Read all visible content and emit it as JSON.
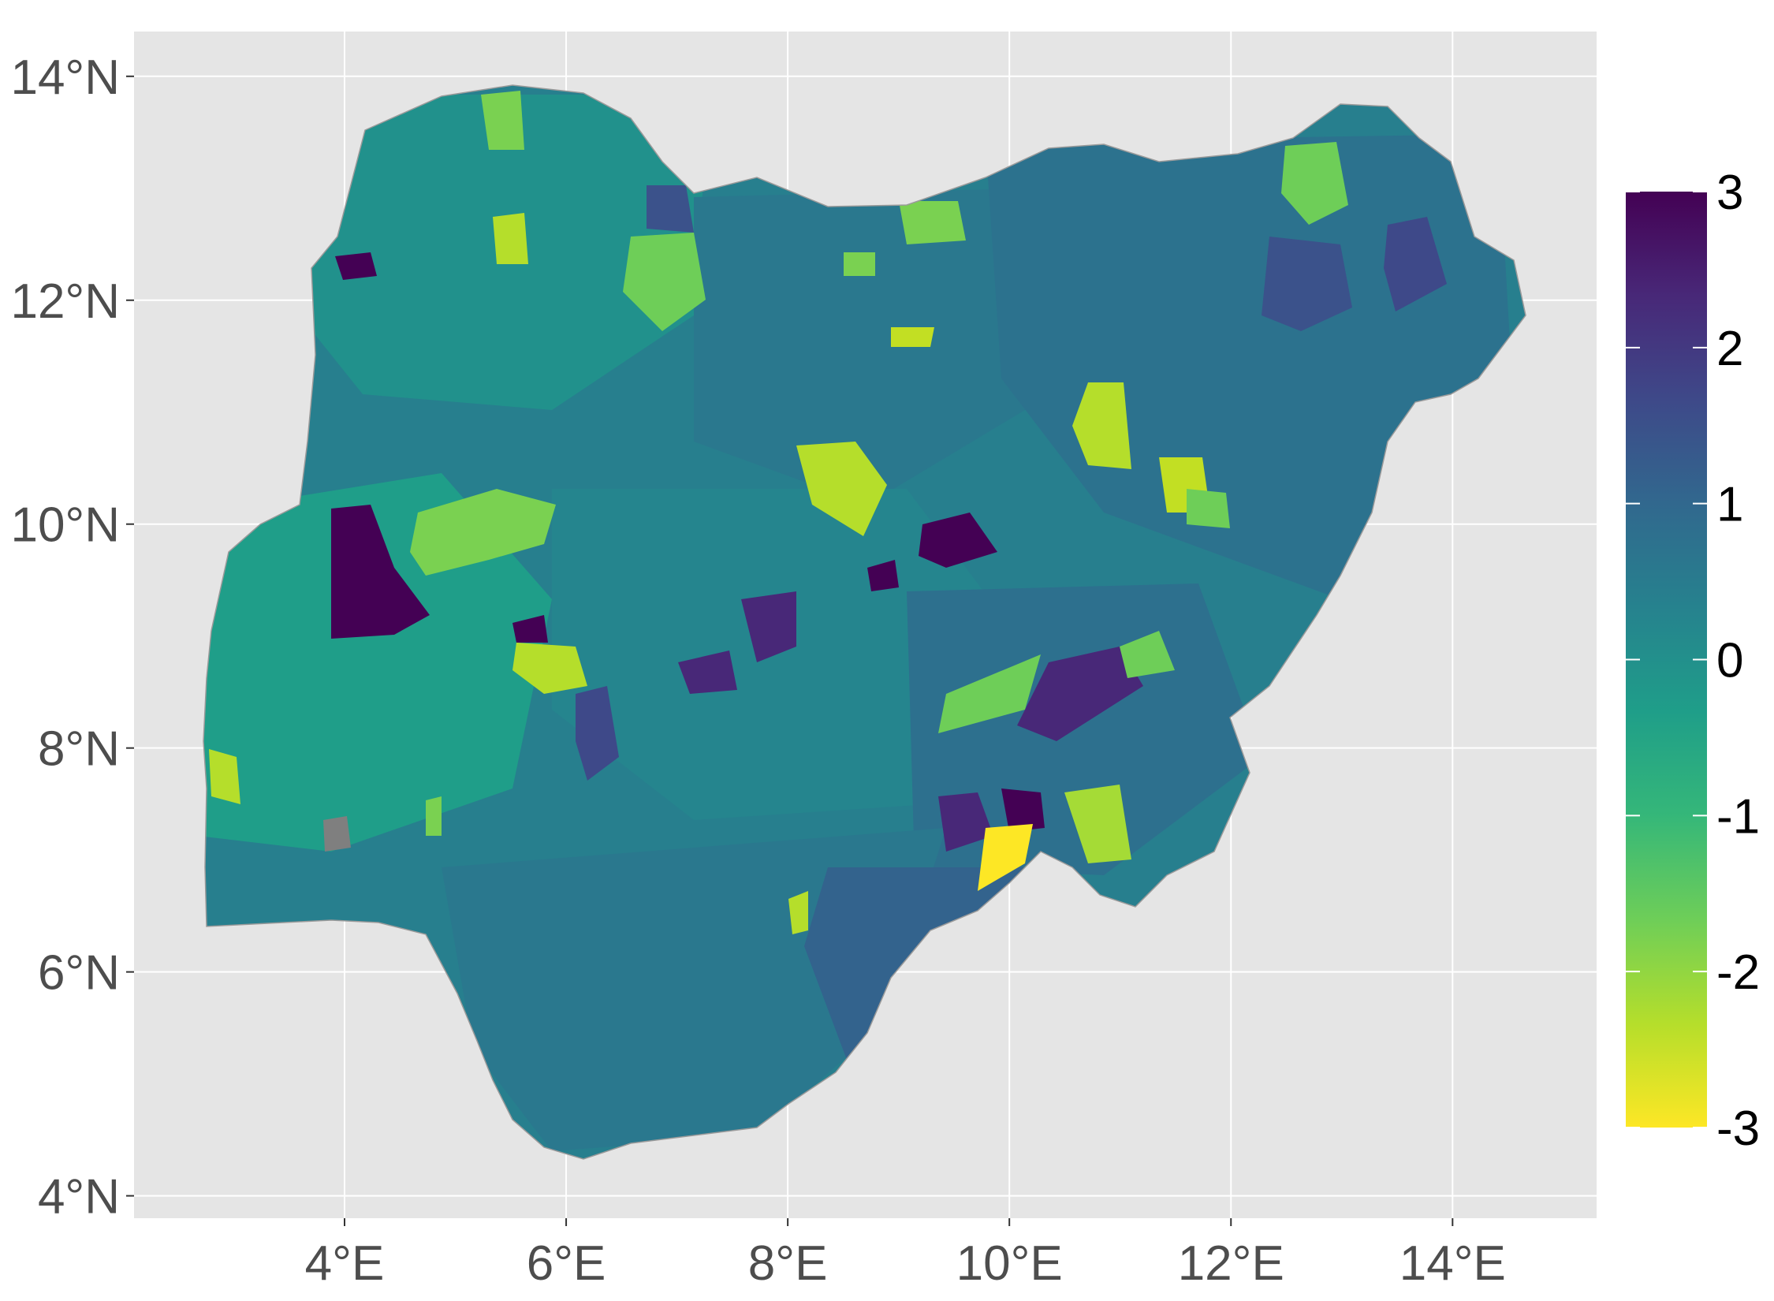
{
  "map": {
    "type": "choropleth",
    "region": "Nigeria",
    "panel_background": "#e5e5e5",
    "grid_color": "#ffffff",
    "grid": true,
    "x_axis": {
      "ticks": [
        4,
        6,
        8,
        10,
        12,
        14
      ],
      "tick_labels": [
        "4°E",
        "6°E",
        "8°E",
        "10°E",
        "12°E",
        "14°E"
      ],
      "range": [
        2.1,
        15.3
      ]
    },
    "y_axis": {
      "ticks": [
        4,
        6,
        8,
        10,
        12,
        14
      ],
      "tick_labels": [
        "4°N",
        "6°N",
        "8°N",
        "10°N",
        "12°N",
        "14°N"
      ],
      "range": [
        3.8,
        14.4
      ]
    },
    "missing_color": "#7f7f7f"
  },
  "legend": {
    "placement": "right",
    "palette": "viridis (reversed)",
    "range": [
      -3,
      3
    ],
    "breaks": [
      3,
      2,
      1,
      0,
      -1,
      -2,
      -3
    ],
    "break_labels": [
      "3",
      "2",
      "1",
      "0",
      "-1",
      "-2",
      "-3"
    ],
    "colors": [
      "#fde725",
      "#b5de2b",
      "#6ece58",
      "#35b779",
      "#1f9e89",
      "#26828e",
      "#31688e",
      "#3e4989",
      "#482878",
      "#440154"
    ]
  }
}
